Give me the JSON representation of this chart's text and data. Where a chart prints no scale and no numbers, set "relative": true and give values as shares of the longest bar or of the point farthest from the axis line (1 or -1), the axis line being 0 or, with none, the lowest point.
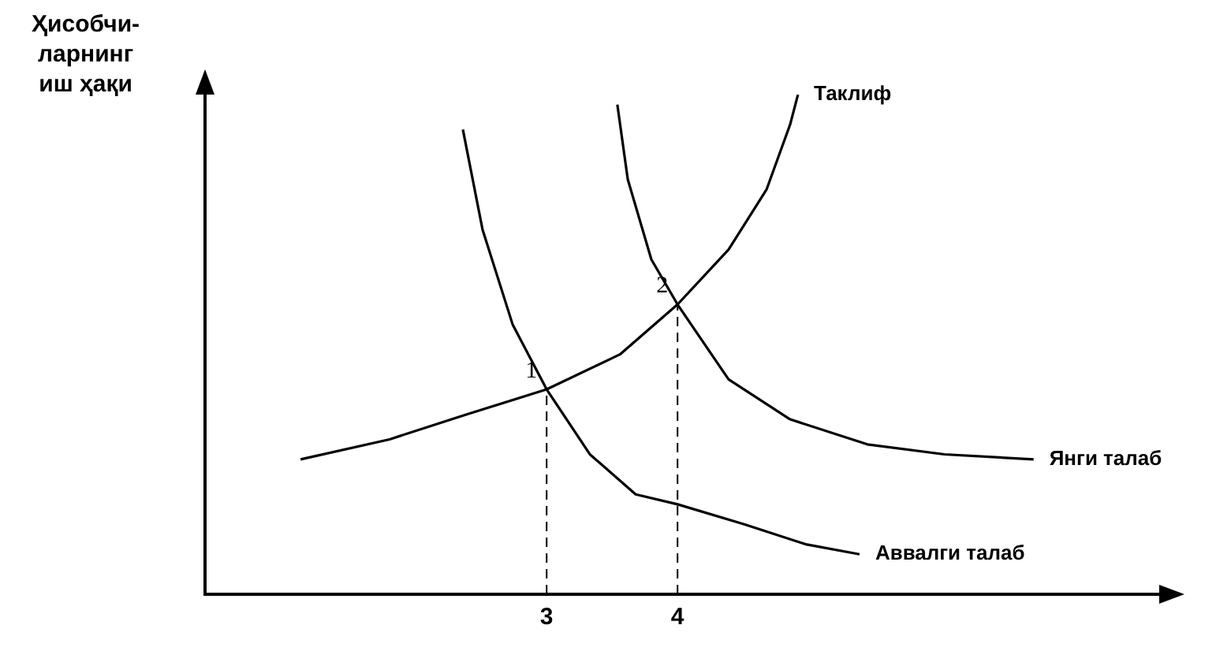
{
  "chart_data": {
    "type": "line",
    "relative": true,
    "ylabel": "Ҳисобчи-\nларнинг\nиш ҳақи",
    "xlim": [
      0.39,
      7.68
    ],
    "xticks": [
      3,
      4
    ],
    "tick_labels": "x",
    "grid": false,
    "legend": false,
    "marker": "none",
    "line_style": "solid",
    "series": [
      {
        "name": "Таклиф",
        "color": "#000000",
        "x": [
          1.12,
          1.8,
          2.39,
          3.0,
          3.56,
          4.0,
          4.39,
          4.68,
          4.86,
          4.92
        ],
        "values": [
          0.27,
          0.31,
          0.36,
          0.41,
          0.48,
          0.58,
          0.69,
          0.81,
          0.94,
          1.0
        ]
      },
      {
        "name": "Аввалги талаб",
        "color": "#000000",
        "x": [
          2.36,
          2.51,
          2.74,
          3.0,
          3.33,
          3.68,
          4.0,
          4.51,
          4.98,
          5.39
        ],
        "values": [
          0.93,
          0.73,
          0.54,
          0.41,
          0.28,
          0.2,
          0.18,
          0.14,
          0.1,
          0.08
        ]
      },
      {
        "name": "Янги талаб",
        "color": "#000000",
        "x": [
          3.54,
          3.62,
          3.8,
          4.0,
          4.39,
          4.86,
          5.45,
          6.04,
          6.72
        ],
        "values": [
          0.98,
          0.83,
          0.67,
          0.58,
          0.43,
          0.35,
          0.3,
          0.28,
          0.27
        ]
      }
    ],
    "ref_lines": [
      {
        "axis": "x",
        "value": 3,
        "line_style": "dashed"
      },
      {
        "axis": "x",
        "value": 4,
        "line_style": "dashed"
      }
    ],
    "annotations": [
      {
        "text": "1",
        "x": 3,
        "y": 0.41
      },
      {
        "text": "2",
        "x": 4,
        "y": 0.58
      }
    ]
  }
}
